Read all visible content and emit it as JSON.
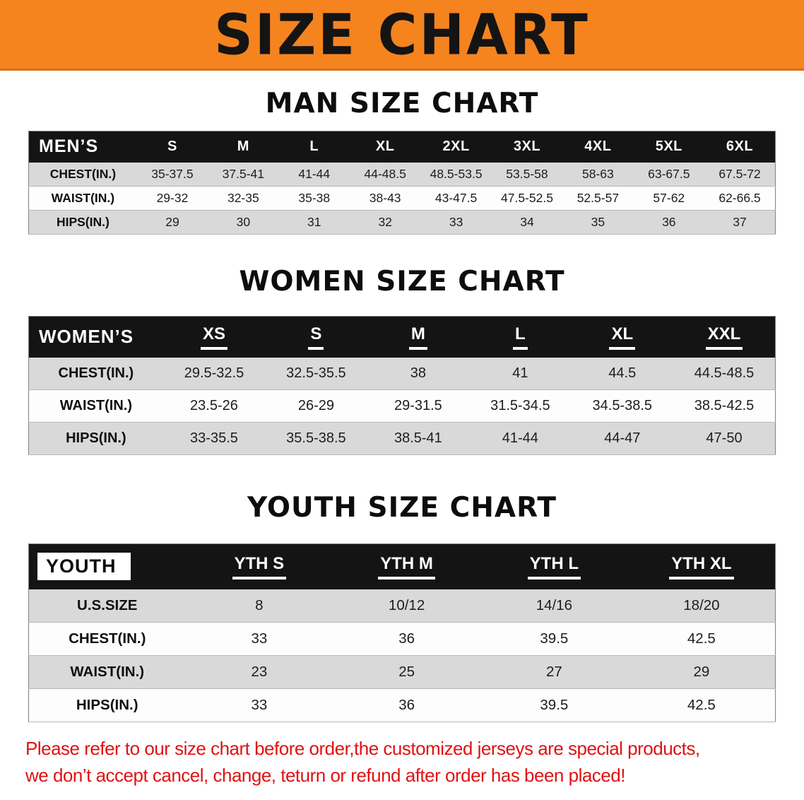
{
  "banner": {
    "title": "SIZE CHART",
    "bg_color": "#f5841e"
  },
  "sections": [
    {
      "heading": "MAN SIZE CHART",
      "table": {
        "name": "men-size-table",
        "header": [
          "MEN’S",
          "S",
          "M",
          "L",
          "XL",
          "2XL",
          "3XL",
          "4XL",
          "5XL",
          "6XL"
        ],
        "rows": [
          {
            "label": "CHEST(IN.)",
            "values": [
              "35-37.5",
              "37.5-41",
              "41-44",
              "44-48.5",
              "48.5-53.5",
              "53.5-58",
              "58-63",
              "63-67.5",
              "67.5-72"
            ]
          },
          {
            "label": "WAIST(IN.)",
            "values": [
              "29-32",
              "32-35",
              "35-38",
              "38-43",
              "43-47.5",
              "47.5-52.5",
              "52.5-57",
              "57-62",
              "62-66.5"
            ]
          },
          {
            "label": "HIPS(IN.)",
            "values": [
              "29",
              "30",
              "31",
              "32",
              "33",
              "34",
              "35",
              "36",
              "37"
            ]
          }
        ]
      }
    },
    {
      "heading": "WOMEN SIZE CHART",
      "table": {
        "name": "women-size-table",
        "header": [
          "WOMEN’S",
          "XS",
          "S",
          "M",
          "L",
          "XL",
          "XXL"
        ],
        "rows": [
          {
            "label": "CHEST(IN.)",
            "values": [
              "29.5-32.5",
              "32.5-35.5",
              "38",
              "41",
              "44.5",
              "44.5-48.5"
            ]
          },
          {
            "label": "WAIST(IN.)",
            "values": [
              "23.5-26",
              "26-29",
              "29-31.5",
              "31.5-34.5",
              "34.5-38.5",
              "38.5-42.5"
            ]
          },
          {
            "label": "HIPS(IN.)",
            "values": [
              "33-35.5",
              "35.5-38.5",
              "38.5-41",
              "41-44",
              "44-47",
              "47-50"
            ]
          }
        ]
      }
    },
    {
      "heading": "YOUTH SIZE CHART",
      "table": {
        "name": "youth-size-table",
        "header": [
          "YOUTH",
          "YTH S",
          "YTH M",
          "YTH L",
          "YTH XL"
        ],
        "rows": [
          {
            "label": "U.S.SIZE",
            "values": [
              "8",
              "10/12",
              "14/16",
              "18/20"
            ]
          },
          {
            "label": "CHEST(IN.)",
            "values": [
              "33",
              "36",
              "39.5",
              "42.5"
            ]
          },
          {
            "label": "WAIST(IN.)",
            "values": [
              "23",
              "25",
              "27",
              "29"
            ]
          },
          {
            "label": "HIPS(IN.)",
            "values": [
              "33",
              "36",
              "39.5",
              "42.5"
            ]
          }
        ]
      }
    }
  ],
  "disclaimer": {
    "line1": "Please refer to our size chart before order,the customized jerseys are special products,",
    "line2": "we don’t accept cancel, change, teturn or refund after order has been placed!",
    "color": "#e01212"
  }
}
